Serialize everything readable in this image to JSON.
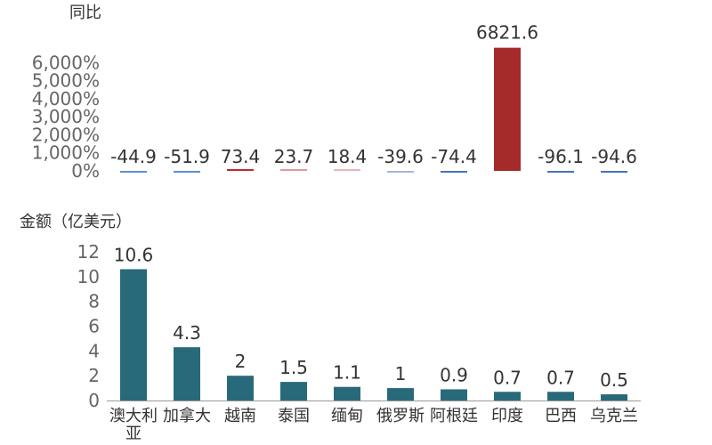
{
  "chart_data": [
    {
      "type": "bar",
      "title": "同比",
      "categories": [
        "澳大利亚",
        "加拿大",
        "越南",
        "泰国",
        "缅甸",
        "俄罗斯",
        "阿根廷",
        "印度",
        "巴西",
        "乌克兰"
      ],
      "values": [
        -44.9,
        -51.9,
        73.4,
        23.7,
        18.4,
        -39.6,
        -74.4,
        6821.6,
        -96.1,
        -94.6
      ],
      "value_labels": [
        "-44.9",
        "-51.9",
        "73.4",
        "23.7",
        "18.4",
        "-39.6",
        "-74.4",
        "6821.6",
        "-96.1",
        "-94.6"
      ],
      "ylim": [
        0,
        7000
      ],
      "yticks": [
        0,
        1000,
        2000,
        3000,
        4000,
        5000,
        6000
      ],
      "ytick_labels": [
        "0%",
        "1,000%",
        "2,000%",
        "3,000%",
        "4,000%",
        "5,000%",
        "6,000%"
      ],
      "colors": [
        "#5b8fd6",
        "#5b8fd6",
        "#c0282f",
        "#e39a9c",
        "#e6b7b8",
        "#9fb8dc",
        "#4472c4",
        "#a52a2a",
        "#4472c4",
        "#4472c4"
      ],
      "grid": false,
      "legend": "none"
    },
    {
      "type": "bar",
      "title": "金额（亿美元）",
      "categories": [
        "澳大利亚",
        "加拿大",
        "越南",
        "泰国",
        "缅甸",
        "俄罗斯",
        "阿根廷",
        "印度",
        "巴西",
        "乌克兰"
      ],
      "category_lines": [
        [
          "澳大利",
          "亚"
        ],
        [
          "加拿大"
        ],
        [
          "越南"
        ],
        [
          "泰国"
        ],
        [
          "缅甸"
        ],
        [
          "俄罗斯"
        ],
        [
          "阿根廷"
        ],
        [
          "印度"
        ],
        [
          "巴西"
        ],
        [
          "乌克兰"
        ]
      ],
      "values": [
        10.6,
        4.3,
        2,
        1.5,
        1.1,
        1,
        0.9,
        0.7,
        0.7,
        0.5
      ],
      "value_labels": [
        "10.6",
        "4.3",
        "2",
        "1.5",
        "1.1",
        "1",
        "0.9",
        "0.7",
        "0.7",
        "0.5"
      ],
      "ylim": [
        0,
        12
      ],
      "yticks": [
        0,
        2,
        4,
        6,
        8,
        10,
        12
      ],
      "ytick_labels": [
        "0",
        "2",
        "4",
        "6",
        "8",
        "10",
        "12"
      ],
      "bar_color": "#286a7a",
      "grid": false,
      "legend": "none"
    }
  ]
}
